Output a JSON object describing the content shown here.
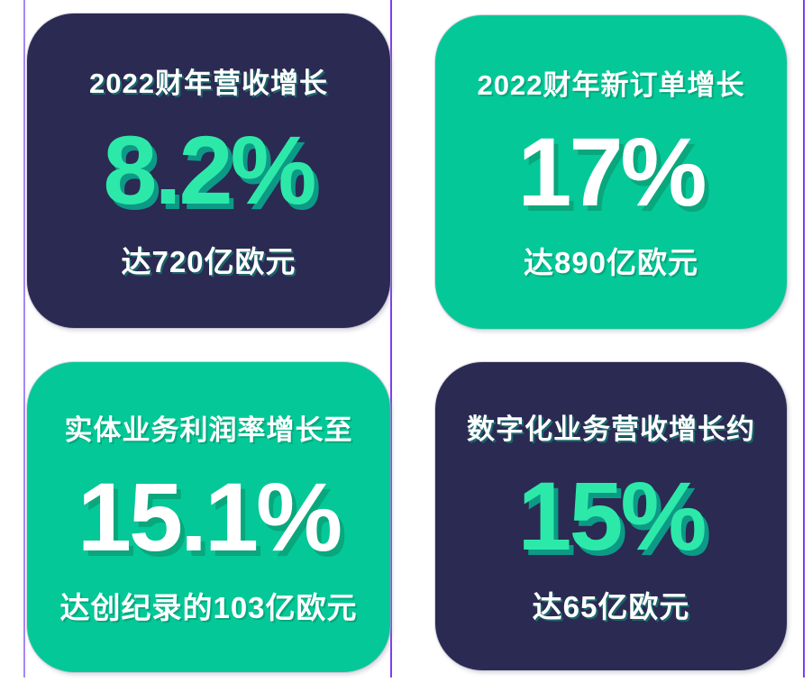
{
  "colors": {
    "card_dark_bg": "#2b2a52",
    "card_green_bg": "#04c898",
    "mint_number": "#2de9a9",
    "mint_number_shadow": "#0c9a86",
    "white_number_shadow": "#0aa77c",
    "guide_line": "#7f3ef0",
    "page_bg": "#ffffff"
  },
  "guides": {
    "count": 3,
    "names": [
      "left-guide",
      "center-guide",
      "right-guide"
    ]
  },
  "cards": [
    {
      "id": "revenue-growth",
      "theme": "dark",
      "title": "2022财年营收增长",
      "value": "8.2%",
      "subtitle": "达720亿欧元"
    },
    {
      "id": "new-orders-growth",
      "theme": "green",
      "title": "2022财年新订单增长",
      "value": "17%",
      "subtitle": "达890亿欧元"
    },
    {
      "id": "industrial-margin-growth",
      "theme": "green",
      "title": "实体业务利润率增长至",
      "value": "15.1%",
      "subtitle": "达创纪录的103亿欧元"
    },
    {
      "id": "digital-revenue-growth",
      "theme": "dark",
      "title": "数字化业务营收增长约",
      "value": "15%",
      "subtitle": "达65亿欧元"
    }
  ],
  "chart_data": {
    "type": "table",
    "title": "2022财年业绩 KPI 卡片",
    "items": [
      {
        "label": "2022财年营收增长",
        "value_percent": 8.2,
        "display_value": "8.2%",
        "note": "达720亿欧元"
      },
      {
        "label": "2022财年新订单增长",
        "value_percent": 17,
        "display_value": "17%",
        "note": "达890亿欧元"
      },
      {
        "label": "实体业务利润率增长至",
        "value_percent": 15.1,
        "display_value": "15.1%",
        "note": "达创纪录的103亿欧元"
      },
      {
        "label": "数字化业务营收增长约",
        "value_percent": 15,
        "display_value": "15%",
        "note": "达65亿欧元"
      }
    ],
    "layout": "2x2-grid"
  }
}
